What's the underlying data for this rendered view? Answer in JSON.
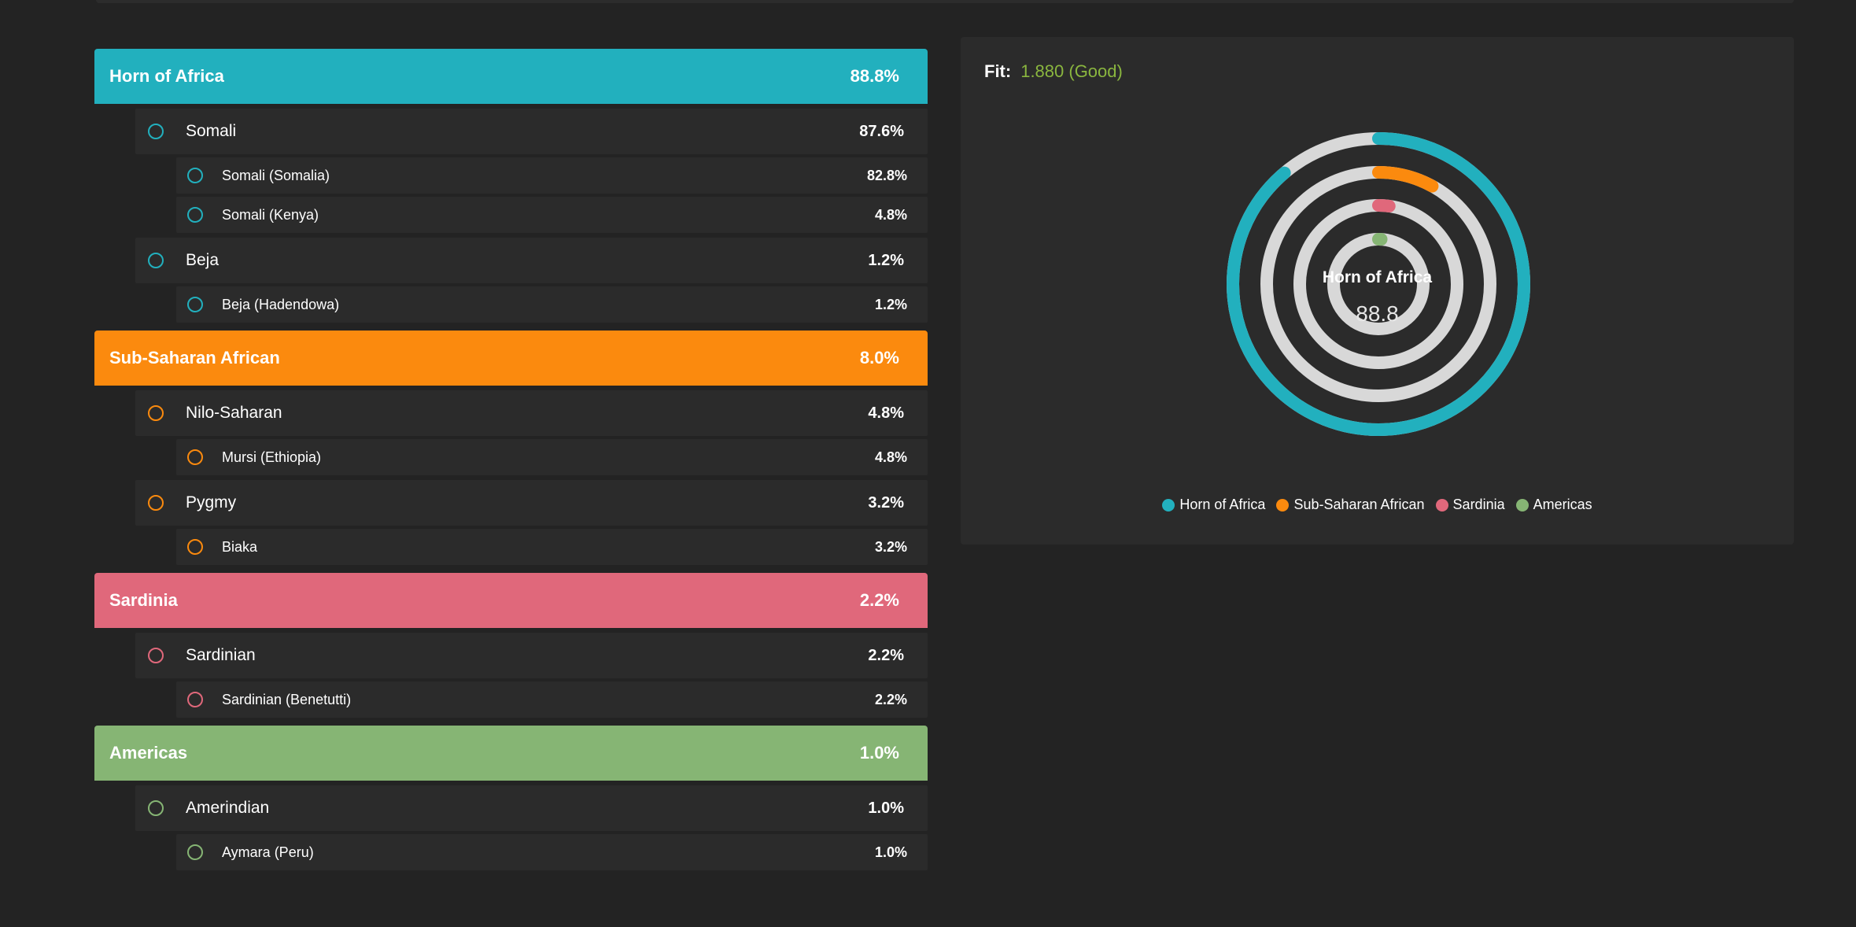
{
  "colors": {
    "horn": "#22b0be",
    "subsaharan": "#fb8a0e",
    "sardinia": "#e0687b",
    "americas": "#86b574",
    "ring_bg": "#d8d8d8"
  },
  "groups": [
    {
      "label": "Horn of Africa",
      "pct": "88.8%",
      "color": "#22b0be",
      "subs": [
        {
          "label": "Somali",
          "pct": "87.6%",
          "leaves": [
            {
              "label": "Somali (Somalia)",
              "pct": "82.8%"
            },
            {
              "label": "Somali (Kenya)",
              "pct": "4.8%"
            }
          ]
        },
        {
          "label": "Beja",
          "pct": "1.2%",
          "leaves": [
            {
              "label": "Beja (Hadendowa)",
              "pct": "1.2%"
            }
          ]
        }
      ]
    },
    {
      "label": "Sub-Saharan African",
      "pct": "8.0%",
      "color": "#fb8a0e",
      "subs": [
        {
          "label": "Nilo-Saharan",
          "pct": "4.8%",
          "leaves": [
            {
              "label": "Mursi (Ethiopia)",
              "pct": "4.8%"
            }
          ]
        },
        {
          "label": "Pygmy",
          "pct": "3.2%",
          "leaves": [
            {
              "label": "Biaka",
              "pct": "3.2%"
            }
          ]
        }
      ]
    },
    {
      "label": "Sardinia",
      "pct": "2.2%",
      "color": "#e0687b",
      "subs": [
        {
          "label": "Sardinian",
          "pct": "2.2%",
          "leaves": [
            {
              "label": "Sardinian (Benetutti)",
              "pct": "2.2%"
            }
          ]
        }
      ]
    },
    {
      "label": "Americas",
      "pct": "1.0%",
      "color": "#86b574",
      "subs": [
        {
          "label": "Amerindian",
          "pct": "1.0%",
          "leaves": [
            {
              "label": "Aymara (Peru)",
              "pct": "1.0%"
            }
          ]
        }
      ]
    }
  ],
  "fit": {
    "label": "Fit:",
    "value": "1.880 (Good)"
  },
  "chart_data": {
    "type": "radial-bar",
    "center_title": "Horn of Africa",
    "center_value": "88.8",
    "max": 100,
    "series": [
      {
        "name": "Horn of Africa",
        "value": 88.8,
        "color": "#22b0be"
      },
      {
        "name": "Sub-Saharan African",
        "value": 8.0,
        "color": "#fb8a0e"
      },
      {
        "name": "Sardinia",
        "value": 2.2,
        "color": "#e0687b"
      },
      {
        "name": "Americas",
        "value": 1.0,
        "color": "#86b574"
      }
    ],
    "legend_position": "bottom"
  }
}
